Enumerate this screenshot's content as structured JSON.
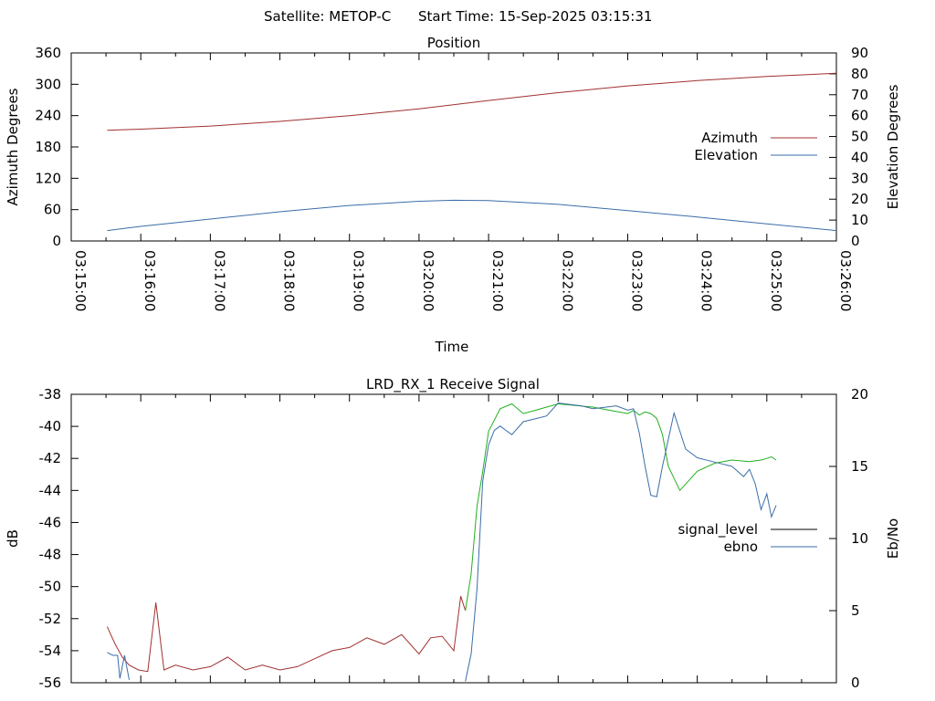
{
  "header": {
    "satellite": "Satellite: METOP-C",
    "start_time": "Start Time: 15-Sep-2025 03:15:31"
  },
  "colors": {
    "azimuth": "#a0302f",
    "elevation": "#3a6ea8",
    "signal_level": "#a0302f",
    "signal_level_legend": "#000000",
    "ebno": "#3a6ea8",
    "ebno_high": "#20b020"
  },
  "chart_data": [
    {
      "type": "line",
      "title": "Position",
      "xlabel": "Time",
      "ylabel": "Azimuth Degrees",
      "y2label": "Elevation Degrees",
      "xlim": [
        "03:15:00",
        "03:26:00"
      ],
      "x_ticks": [
        "03:15:00",
        "03:16:00",
        "03:17:00",
        "03:18:00",
        "03:19:00",
        "03:20:00",
        "03:21:00",
        "03:22:00",
        "03:23:00",
        "03:24:00",
        "03:25:00",
        "03:26:00"
      ],
      "ylim": [
        0,
        360
      ],
      "y_ticks": [
        0,
        60,
        120,
        180,
        240,
        300,
        360
      ],
      "y2lim": [
        0,
        90
      ],
      "y2_ticks": [
        0,
        10,
        20,
        30,
        40,
        50,
        60,
        70,
        80,
        90
      ],
      "legend": "right",
      "grid": false,
      "series": [
        {
          "name": "Azimuth",
          "axis": "left",
          "x": [
            "03:15:31",
            "03:16:00",
            "03:17:00",
            "03:18:00",
            "03:19:00",
            "03:20:00",
            "03:21:00",
            "03:22:00",
            "03:23:00",
            "03:24:00",
            "03:25:00",
            "03:26:00"
          ],
          "values": [
            212,
            214,
            220,
            229,
            240,
            253,
            269,
            284,
            297,
            307,
            315,
            321
          ]
        },
        {
          "name": "Elevation",
          "axis": "right",
          "x": [
            "03:15:31",
            "03:16:00",
            "03:17:00",
            "03:18:00",
            "03:19:00",
            "03:20:00",
            "03:20:30",
            "03:21:00",
            "03:22:00",
            "03:23:00",
            "03:24:00",
            "03:25:00",
            "03:26:00"
          ],
          "values": [
            5,
            7,
            10.5,
            14,
            17,
            19,
            19.5,
            19.3,
            17.5,
            14.5,
            11.5,
            8.2,
            5
          ]
        }
      ]
    },
    {
      "type": "line",
      "title": "LRD_RX_1 Receive Signal",
      "xlabel": "",
      "ylabel": "dB",
      "y2label": "Eb/No",
      "xlim": [
        "03:15:00",
        "03:26:00"
      ],
      "ylim": [
        -56,
        -38
      ],
      "y_ticks": [
        -56,
        -54,
        -52,
        -50,
        -48,
        -46,
        -44,
        -42,
        -40,
        -38
      ],
      "y2lim": [
        0,
        20
      ],
      "y2_ticks": [
        0,
        5,
        10,
        15,
        20
      ],
      "legend": "right",
      "grid": false,
      "series": [
        {
          "name": "signal_level",
          "axis": "left",
          "x": [
            "03:15:31",
            "03:15:38",
            "03:15:44",
            "03:15:50",
            "03:15:58",
            "03:16:06",
            "03:16:13",
            "03:16:20",
            "03:16:30",
            "03:16:45",
            "03:17:00",
            "03:17:15",
            "03:17:30",
            "03:17:45",
            "03:18:00",
            "03:18:15",
            "03:18:30",
            "03:18:45",
            "03:19:00",
            "03:19:15",
            "03:19:30",
            "03:19:45",
            "03:20:00",
            "03:20:10",
            "03:20:20",
            "03:20:30",
            "03:20:36",
            "03:20:40",
            "03:20:45",
            "03:20:50",
            "03:20:55",
            "03:21:00",
            "03:21:10",
            "03:21:20",
            "03:21:30",
            "03:21:40",
            "03:21:50",
            "03:22:00",
            "03:22:15",
            "03:22:30",
            "03:22:45",
            "03:23:00",
            "03:23:05",
            "03:23:10",
            "03:23:15",
            "03:23:20",
            "03:23:25",
            "03:23:30",
            "03:23:35",
            "03:23:45",
            "03:24:00",
            "03:24:15",
            "03:24:30",
            "03:24:45",
            "03:24:55",
            "03:25:00",
            "03:25:04",
            "03:25:08"
          ],
          "values": [
            -52.5,
            -53.6,
            -54.4,
            -54.9,
            -55.2,
            -55.3,
            -51.0,
            -55.2,
            -54.9,
            -55.2,
            -55.0,
            -54.4,
            -55.2,
            -54.9,
            -55.2,
            -55.0,
            -54.5,
            -54.0,
            -53.8,
            -53.2,
            -53.6,
            -53.0,
            -54.2,
            -53.2,
            -53.1,
            -54.0,
            -50.6,
            -51.5,
            -49.2,
            -45.0,
            -42.8,
            -40.3,
            -38.9,
            -38.6,
            -39.2,
            -39.0,
            -38.8,
            -38.6,
            -38.7,
            -38.8,
            -39.0,
            -39.2,
            -39.0,
            -39.3,
            -39.1,
            -39.2,
            -39.5,
            -40.5,
            -42.5,
            -44.0,
            -42.8,
            -42.3,
            -42.1,
            -42.2,
            -42.1,
            -42.0,
            -41.9,
            -42.1
          ]
        },
        {
          "name": "ebno",
          "axis": "right",
          "x": [
            "03:15:31",
            "03:15:36",
            "03:15:40",
            "03:15:42",
            "03:15:46",
            "03:15:50",
            "03:20:40",
            "03:20:45",
            "03:20:50",
            "03:20:55",
            "03:21:00",
            "03:21:05",
            "03:21:10",
            "03:21:15",
            "03:21:20",
            "03:21:30",
            "03:21:40",
            "03:21:50",
            "03:22:00",
            "03:22:10",
            "03:22:20",
            "03:22:30",
            "03:22:40",
            "03:22:50",
            "03:23:00",
            "03:23:05",
            "03:23:10",
            "03:23:15",
            "03:23:20",
            "03:23:25",
            "03:23:30",
            "03:23:40",
            "03:23:50",
            "03:24:00",
            "03:24:10",
            "03:24:20",
            "03:24:30",
            "03:24:40",
            "03:24:45",
            "03:24:50",
            "03:24:55",
            "03:25:00",
            "03:25:04",
            "03:25:08"
          ],
          "values": [
            2.1,
            1.9,
            1.9,
            0.3,
            1.9,
            0.2,
            0.1,
            2.0,
            6.5,
            14.0,
            16.5,
            17.5,
            17.8,
            17.5,
            17.2,
            18.1,
            18.3,
            18.5,
            19.4,
            19.3,
            19.2,
            19.0,
            19.1,
            19.2,
            18.9,
            19.0,
            17.3,
            15.0,
            13.0,
            12.9,
            15.0,
            18.7,
            16.2,
            15.6,
            15.4,
            15.2,
            15.0,
            14.3,
            14.8,
            13.8,
            12.0,
            13.1,
            11.5,
            12.3
          ]
        }
      ]
    }
  ]
}
